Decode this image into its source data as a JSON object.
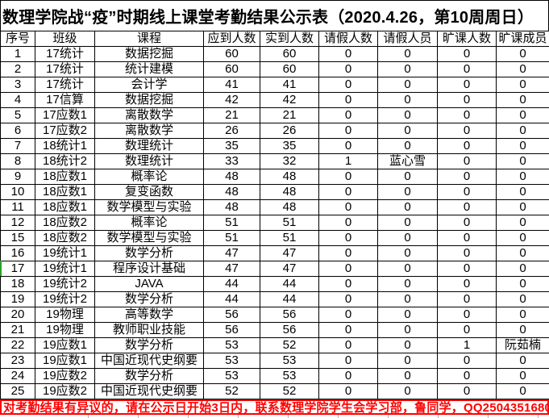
{
  "title": "数理学院战“疫”时期线上课堂考勤结果公示表（2020.4.26，第10周周日）",
  "table": {
    "headers": [
      "序号",
      "班级",
      "课程",
      "应到人数",
      "实到人数",
      "请假人数",
      "请假人员",
      "旷课人数",
      "旷课成员"
    ],
    "rows": [
      [
        "1",
        "17统计",
        "数据挖掘",
        "60",
        "60",
        "0",
        "0",
        "0",
        "0"
      ],
      [
        "2",
        "17统计",
        "统计建模",
        "60",
        "60",
        "0",
        "0",
        "0",
        "0"
      ],
      [
        "3",
        "17统计",
        "会计学",
        "41",
        "41",
        "0",
        "0",
        "0",
        "0"
      ],
      [
        "4",
        "17信算",
        "数据挖掘",
        "42",
        "42",
        "0",
        "0",
        "0",
        "0"
      ],
      [
        "5",
        "17应数1",
        "离散数学",
        "21",
        "21",
        "0",
        "0",
        "0",
        "0"
      ],
      [
        "6",
        "17应数2",
        "离散数学",
        "26",
        "26",
        "0",
        "0",
        "0",
        "0"
      ],
      [
        "7",
        "18统计1",
        "数理统计",
        "35",
        "35",
        "0",
        "0",
        "0",
        "0"
      ],
      [
        "8",
        "18统计2",
        "数理统计",
        "33",
        "32",
        "1",
        "蓝心雪",
        "0",
        "0"
      ],
      [
        "9",
        "18应数1",
        "概率论",
        "48",
        "48",
        "0",
        "0",
        "0",
        "0"
      ],
      [
        "10",
        "18应数1",
        "复变函数",
        "48",
        "48",
        "0",
        "0",
        "0",
        "0"
      ],
      [
        "11",
        "18应数1",
        "数学模型与实验",
        "48",
        "48",
        "0",
        "0",
        "0",
        "0"
      ],
      [
        "12",
        "18应数2",
        "概率论",
        "51",
        "51",
        "0",
        "0",
        "0",
        "0"
      ],
      [
        "15",
        "18应数2",
        "数学模型与实验",
        "51",
        "51",
        "0",
        "0",
        "0",
        "0"
      ],
      [
        "16",
        "19统计1",
        "数学分析",
        "47",
        "47",
        "0",
        "0",
        "0",
        "0"
      ],
      [
        "17",
        "19统计1",
        "程序设计基础",
        "47",
        "47",
        "0",
        "0",
        "0",
        "0"
      ],
      [
        "18",
        "19统计2",
        "JAVA",
        "44",
        "44",
        "0",
        "0",
        "0",
        "0"
      ],
      [
        "19",
        "19统计2",
        "数学分析",
        "44",
        "44",
        "0",
        "0",
        "0",
        "0"
      ],
      [
        "20",
        "19物理",
        "高等数学",
        "56",
        "56",
        "0",
        "0",
        "0",
        "0"
      ],
      [
        "21",
        "19物理",
        "教师职业技能",
        "56",
        "56",
        "0",
        "0",
        "0",
        "0"
      ],
      [
        "22",
        "19应数1",
        "数学分析",
        "53",
        "52",
        "0",
        "0",
        "1",
        "阮茹楠"
      ],
      [
        "23",
        "19应数1",
        "中国近现代史纲要",
        "53",
        "53",
        "0",
        "0",
        "0",
        "0"
      ],
      [
        "24",
        "19应数2",
        "数学分析",
        "53",
        "53",
        "0",
        "0",
        "0",
        "0"
      ],
      [
        "25",
        "19应数2",
        "中国近现代史纲要",
        "52",
        "52",
        "0",
        "0",
        "0",
        "0"
      ]
    ]
  },
  "footer_notice": "对考勤结果有异议的，请在公示日开始3日内，联系数理学院学生会学习部，鲁同学，QQ2504351680",
  "marker": {
    "row_serial": "17"
  },
  "colors": {
    "notice_red": "#ff0000",
    "marker_green": "#2ba12b",
    "grid_black": "#000000"
  }
}
